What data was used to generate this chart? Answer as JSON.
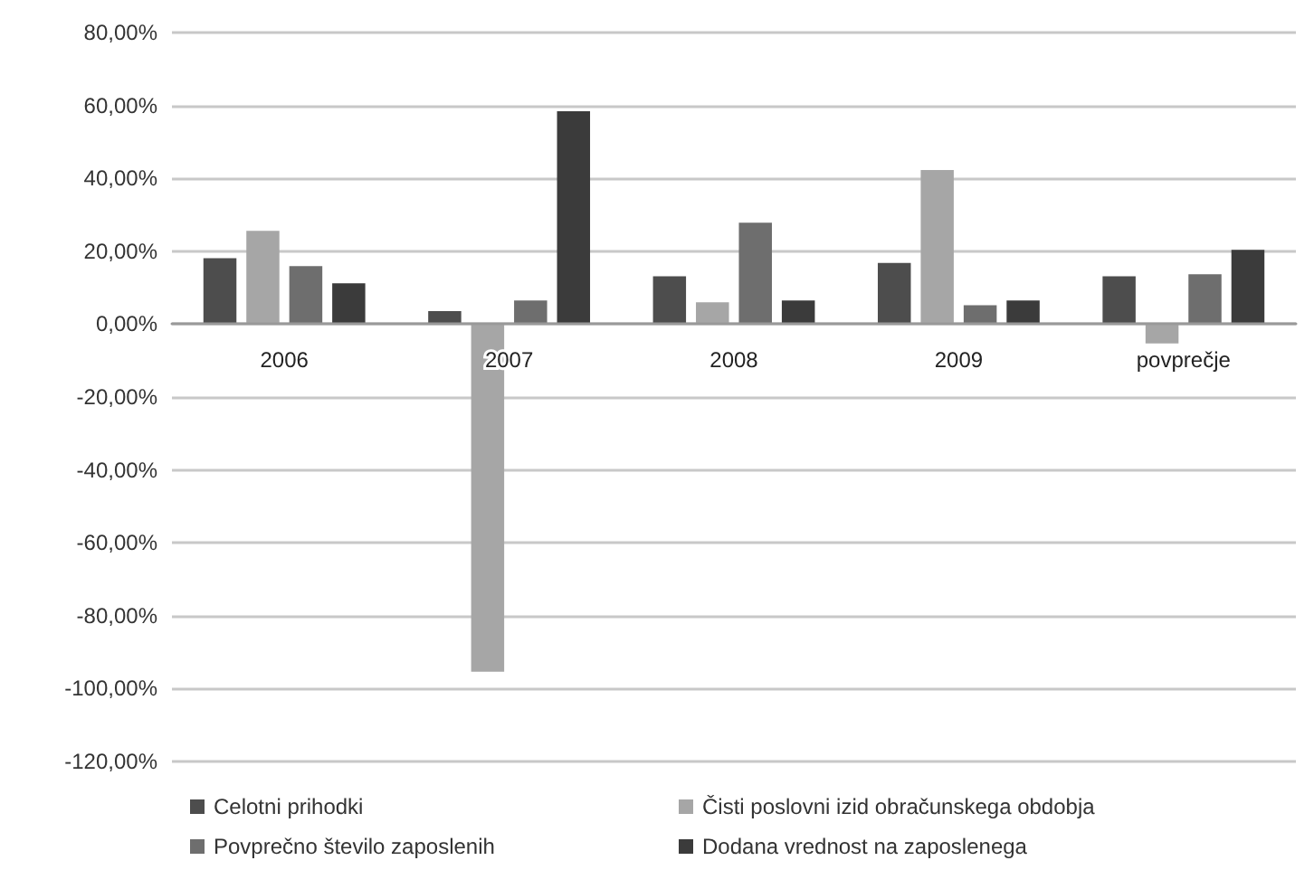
{
  "chart_data": {
    "type": "bar",
    "categories": [
      "2006",
      "2007",
      "2008",
      "2009",
      "povprečje"
    ],
    "series": [
      {
        "name": "Celotni prihodki",
        "color": "#4d4d4d",
        "values": [
          18.1,
          3.6,
          13.1,
          16.8,
          13.1
        ]
      },
      {
        "name": "Čisti poslovni izid obračunskega obdobja",
        "color": "#a6a6a6",
        "values": [
          25.6,
          -95.4,
          6.0,
          42.3,
          -5.3
        ]
      },
      {
        "name": "Povprečno število zaposlenih",
        "color": "#6e6e6e",
        "values": [
          15.9,
          6.5,
          27.8,
          5.2,
          13.7
        ]
      },
      {
        "name": "Dodana vrednost na zaposlenega",
        "color": "#3b3b3b",
        "values": [
          11.2,
          58.4,
          6.5,
          6.5,
          20.4
        ]
      }
    ],
    "ylim": [
      -120,
      80
    ],
    "yticks": [
      {
        "value": -120,
        "label": "-120,00%"
      },
      {
        "value": -100,
        "label": "-100,00%"
      },
      {
        "value": -80,
        "label": "-80,00%"
      },
      {
        "value": -60,
        "label": "-60,00%"
      },
      {
        "value": -40,
        "label": "-40,00%"
      },
      {
        "value": -20,
        "label": "-20,00%"
      },
      {
        "value": 0,
        "label": "0,00%"
      },
      {
        "value": 20,
        "label": "20,00%"
      },
      {
        "value": 40,
        "label": "40,00%"
      },
      {
        "value": 60,
        "label": "60,00%"
      },
      {
        "value": 80,
        "label": "80,00%"
      }
    ],
    "grid": "y",
    "legend": "bottom"
  }
}
